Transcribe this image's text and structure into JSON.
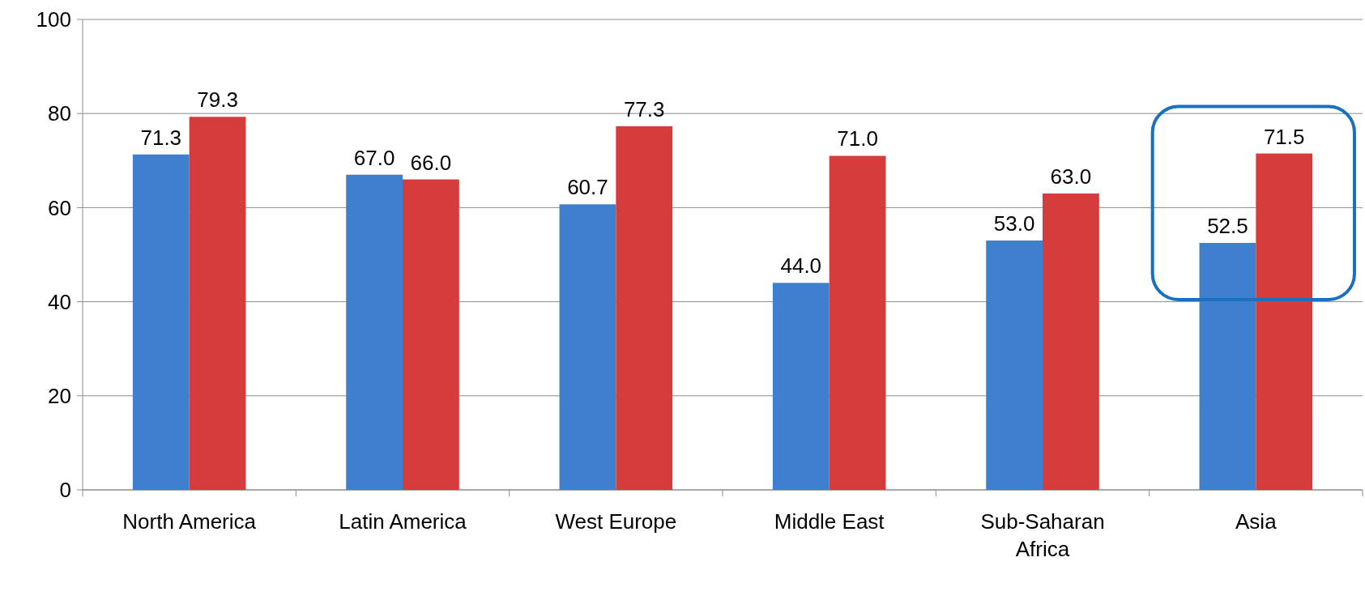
{
  "chart_data": {
    "type": "bar",
    "categories": [
      "North America",
      "Latin America",
      "West Europe",
      "Middle East",
      "Sub-Saharan Africa",
      "Asia"
    ],
    "series": [
      {
        "color": "#3f7fcf",
        "values": [
          71.3,
          67,
          60.7,
          44,
          53,
          52.5
        ],
        "value_labels": [
          "71.3",
          "67.0",
          "60.7",
          "44.0",
          "53.0",
          "52.5"
        ]
      },
      {
        "color": "#d63c3c",
        "values": [
          79.3,
          66,
          77.3,
          71,
          63,
          71.5
        ],
        "value_labels": [
          "79.3",
          "66.0",
          "77.3",
          "71.0",
          "63.0",
          "71.5"
        ]
      }
    ],
    "ylim": [
      0,
      100
    ],
    "yticks": [
      0,
      20,
      40,
      60,
      80,
      100
    ],
    "grid": "y"
  }
}
